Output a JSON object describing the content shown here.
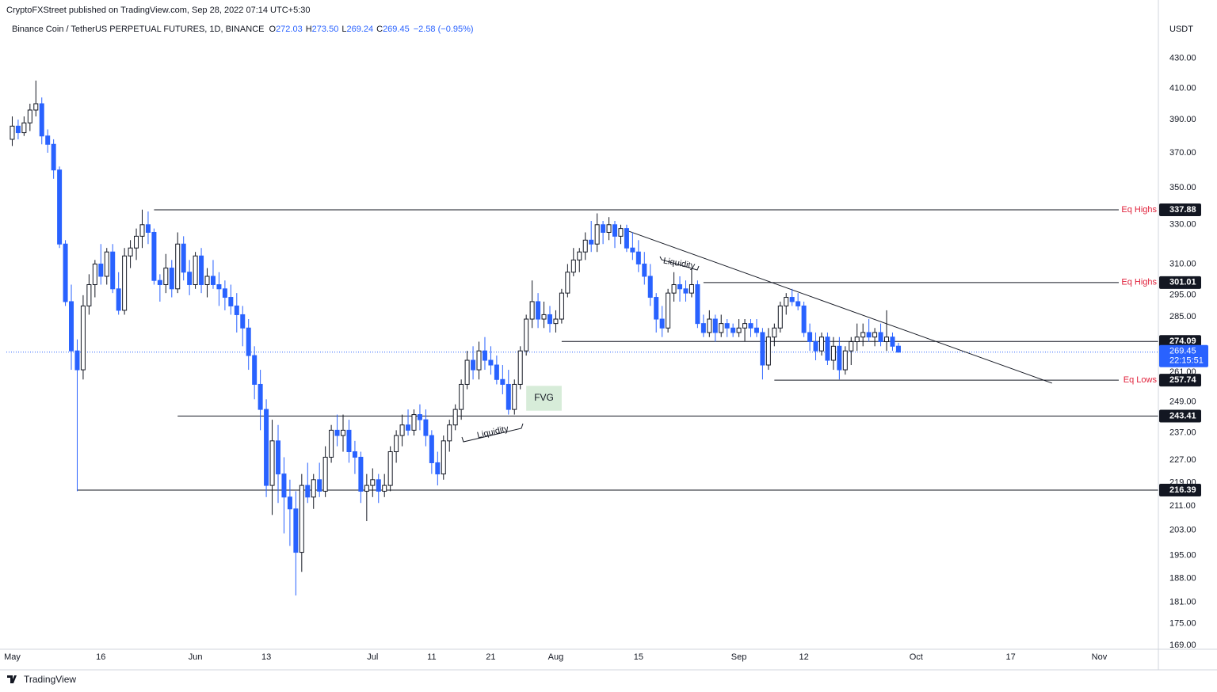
{
  "chart_data": {
    "type": "candlestick",
    "publisher": "CryptoFXStreet published on TradingView.com, Sep 28, 2022 07:14 UTC+5:30",
    "title": "Binance Coin / TetherUS PERPETUAL FUTURES, 1D, BINANCE",
    "ohlc": [
      {
        "key": "O",
        "value": "272.03"
      },
      {
        "key": "H",
        "value": "273.50"
      },
      {
        "key": "L",
        "value": "269.24"
      },
      {
        "key": "C",
        "value": "269.45"
      }
    ],
    "change": "−2.58 (−0.95%)",
    "unit": "USDT",
    "logo": "TradingView",
    "log_scale": true,
    "grid": false,
    "up_color": "#ffffff",
    "down_color": "#2962ff",
    "ylim": [
      168,
      460
    ],
    "yticks": [
      {
        "value": 430,
        "label": "430.00"
      },
      {
        "value": 410,
        "label": "410.00"
      },
      {
        "value": 390,
        "label": "390.00"
      },
      {
        "value": 370,
        "label": "370.00"
      },
      {
        "value": 350,
        "label": "350.00"
      },
      {
        "value": 330,
        "label": "330.00"
      },
      {
        "value": 310,
        "label": "310.00"
      },
      {
        "value": 295,
        "label": "295.00"
      },
      {
        "value": 285,
        "label": "285.00"
      },
      {
        "value": 261,
        "label": "261.00"
      },
      {
        "value": 249,
        "label": "249.00"
      },
      {
        "value": 237,
        "label": "237.00"
      },
      {
        "value": 227,
        "label": "227.00"
      },
      {
        "value": 219,
        "label": "219.00"
      },
      {
        "value": 211,
        "label": "211.00"
      },
      {
        "value": 203,
        "label": "203.00"
      },
      {
        "value": 195,
        "label": "195.00"
      },
      {
        "value": 188,
        "label": "188.00"
      },
      {
        "value": 181,
        "label": "181.00"
      },
      {
        "value": 175,
        "label": "175.00"
      },
      {
        "value": 169,
        "label": "169.00"
      }
    ],
    "xlim": [
      -1,
      194
    ],
    "xticks": [
      {
        "value": 0,
        "label": "May"
      },
      {
        "value": 15,
        "label": "16"
      },
      {
        "value": 31,
        "label": "Jun"
      },
      {
        "value": 43,
        "label": "13"
      },
      {
        "value": 61,
        "label": "Jul"
      },
      {
        "value": 71,
        "label": "11"
      },
      {
        "value": 81,
        "label": "21"
      },
      {
        "value": 92,
        "label": "Aug"
      },
      {
        "value": 106,
        "label": "15"
      },
      {
        "value": 123,
        "label": "Sep"
      },
      {
        "value": 134,
        "label": "12"
      },
      {
        "value": 153,
        "label": "Oct"
      },
      {
        "value": 169,
        "label": "17"
      },
      {
        "value": 184,
        "label": "Nov"
      }
    ],
    "candles": [
      [
        378,
        392,
        374,
        386
      ],
      [
        386,
        390,
        378,
        382
      ],
      [
        382,
        392,
        380,
        388
      ],
      [
        388,
        400,
        383,
        396
      ],
      [
        396,
        415,
        392,
        400
      ],
      [
        400,
        404,
        375,
        380
      ],
      [
        380,
        384,
        370,
        375
      ],
      [
        375,
        378,
        355,
        360
      ],
      [
        360,
        362,
        318,
        320
      ],
      [
        320,
        322,
        290,
        292
      ],
      [
        292,
        300,
        262,
        270
      ],
      [
        270,
        275,
        216,
        262
      ],
      [
        262,
        295,
        258,
        290
      ],
      [
        290,
        305,
        286,
        300
      ],
      [
        300,
        312,
        294,
        310
      ],
      [
        310,
        320,
        300,
        304
      ],
      [
        304,
        318,
        300,
        316
      ],
      [
        316,
        320,
        296,
        298
      ],
      [
        298,
        306,
        286,
        288
      ],
      [
        288,
        318,
        286,
        314
      ],
      [
        314,
        322,
        308,
        318
      ],
      [
        318,
        328,
        312,
        324
      ],
      [
        324,
        338,
        318,
        330
      ],
      [
        330,
        337,
        320,
        326
      ],
      [
        326,
        328,
        300,
        302
      ],
      [
        302,
        305,
        292,
        300
      ],
      [
        300,
        315,
        296,
        308
      ],
      [
        308,
        312,
        294,
        298
      ],
      [
        298,
        326,
        296,
        320
      ],
      [
        320,
        324,
        302,
        306
      ],
      [
        306,
        312,
        295,
        300
      ],
      [
        300,
        316,
        298,
        314
      ],
      [
        314,
        318,
        296,
        300
      ],
      [
        300,
        308,
        294,
        304
      ],
      [
        304,
        312,
        298,
        300
      ],
      [
        300,
        306,
        290,
        298
      ],
      [
        298,
        302,
        288,
        294
      ],
      [
        294,
        300,
        286,
        290
      ],
      [
        290,
        296,
        278,
        286
      ],
      [
        286,
        290,
        272,
        280
      ],
      [
        280,
        284,
        262,
        268
      ],
      [
        268,
        272,
        250,
        256
      ],
      [
        256,
        262,
        238,
        246
      ],
      [
        246,
        250,
        214,
        218
      ],
      [
        218,
        242,
        208,
        234
      ],
      [
        234,
        240,
        212,
        222
      ],
      [
        222,
        228,
        202,
        214
      ],
      [
        214,
        220,
        198,
        210
      ],
      [
        210,
        216,
        183,
        196
      ],
      [
        196,
        222,
        190,
        218
      ],
      [
        218,
        226,
        212,
        214
      ],
      [
        214,
        222,
        210,
        220
      ],
      [
        220,
        226,
        214,
        216
      ],
      [
        216,
        232,
        214,
        228
      ],
      [
        228,
        240,
        226,
        238
      ],
      [
        238,
        244,
        232,
        236
      ],
      [
        236,
        244,
        230,
        238
      ],
      [
        238,
        242,
        226,
        230
      ],
      [
        230,
        234,
        222,
        228
      ],
      [
        228,
        230,
        212,
        216
      ],
      [
        216,
        222,
        206,
        218
      ],
      [
        218,
        224,
        214,
        220
      ],
      [
        220,
        222,
        212,
        216
      ],
      [
        216,
        222,
        214,
        218
      ],
      [
        218,
        232,
        216,
        230
      ],
      [
        230,
        238,
        226,
        236
      ],
      [
        236,
        244,
        232,
        240
      ],
      [
        240,
        246,
        236,
        238
      ],
      [
        238,
        246,
        236,
        244
      ],
      [
        244,
        248,
        238,
        242
      ],
      [
        242,
        246,
        232,
        236
      ],
      [
        236,
        238,
        222,
        226
      ],
      [
        226,
        230,
        218,
        222
      ],
      [
        222,
        236,
        220,
        234
      ],
      [
        234,
        242,
        230,
        240
      ],
      [
        240,
        248,
        238,
        246
      ],
      [
        246,
        258,
        242,
        256
      ],
      [
        256,
        270,
        254,
        266
      ],
      [
        266,
        272,
        258,
        262
      ],
      [
        262,
        274,
        258,
        270
      ],
      [
        270,
        276,
        262,
        266
      ],
      [
        266,
        272,
        260,
        264
      ],
      [
        264,
        268,
        256,
        258
      ],
      [
        258,
        264,
        252,
        256
      ],
      [
        256,
        262,
        244,
        246
      ],
      [
        246,
        258,
        244,
        256
      ],
      [
        256,
        272,
        254,
        270
      ],
      [
        270,
        286,
        268,
        284
      ],
      [
        284,
        302,
        280,
        292
      ],
      [
        292,
        296,
        280,
        284
      ],
      [
        284,
        292,
        280,
        286
      ],
      [
        286,
        290,
        278,
        282
      ],
      [
        282,
        288,
        278,
        284
      ],
      [
        284,
        298,
        282,
        296
      ],
      [
        296,
        310,
        294,
        306
      ],
      [
        306,
        318,
        304,
        312
      ],
      [
        312,
        318,
        306,
        316
      ],
      [
        316,
        326,
        312,
        322
      ],
      [
        322,
        332,
        316,
        320
      ],
      [
        320,
        336,
        316,
        330
      ],
      [
        330,
        332,
        320,
        326
      ],
      [
        326,
        334,
        322,
        330
      ],
      [
        330,
        332,
        318,
        324
      ],
      [
        324,
        330,
        320,
        328
      ],
      [
        328,
        330,
        316,
        318
      ],
      [
        318,
        326,
        312,
        316
      ],
      [
        316,
        322,
        306,
        310
      ],
      [
        310,
        316,
        300,
        304
      ],
      [
        304,
        310,
        290,
        294
      ],
      [
        294,
        296,
        278,
        284
      ],
      [
        284,
        290,
        276,
        280
      ],
      [
        280,
        298,
        278,
        296
      ],
      [
        296,
        306,
        292,
        300
      ],
      [
        300,
        304,
        292,
        298
      ],
      [
        298,
        302,
        292,
        296
      ],
      [
        296,
        308,
        294,
        300
      ],
      [
        300,
        302,
        280,
        282
      ],
      [
        282,
        286,
        276,
        278
      ],
      [
        278,
        288,
        276,
        284
      ],
      [
        284,
        286,
        274,
        278
      ],
      [
        278,
        286,
        276,
        282
      ],
      [
        282,
        284,
        276,
        280
      ],
      [
        280,
        282,
        276,
        278
      ],
      [
        278,
        284,
        276,
        280
      ],
      [
        280,
        284,
        274,
        282
      ],
      [
        282,
        284,
        276,
        280
      ],
      [
        280,
        284,
        276,
        278
      ],
      [
        278,
        280,
        258,
        264
      ],
      [
        264,
        280,
        262,
        276
      ],
      [
        276,
        282,
        272,
        280
      ],
      [
        280,
        292,
        278,
        290
      ],
      [
        290,
        296,
        286,
        294
      ],
      [
        294,
        298,
        290,
        292
      ],
      [
        292,
        296,
        288,
        290
      ],
      [
        290,
        292,
        276,
        278
      ],
      [
        278,
        282,
        270,
        274
      ],
      [
        274,
        278,
        266,
        270
      ],
      [
        270,
        278,
        268,
        276
      ],
      [
        276,
        278,
        264,
        266
      ],
      [
        266,
        276,
        262,
        272
      ],
      [
        272,
        276,
        258,
        262
      ],
      [
        262,
        272,
        260,
        270
      ],
      [
        270,
        276,
        264,
        274
      ],
      [
        274,
        282,
        270,
        276
      ],
      [
        276,
        282,
        272,
        278
      ],
      [
        278,
        284,
        274,
        276
      ],
      [
        276,
        280,
        272,
        278
      ],
      [
        278,
        282,
        272,
        274
      ],
      [
        274,
        288,
        270,
        276
      ],
      [
        276,
        278,
        270,
        272
      ],
      [
        272.03,
        273.5,
        269.24,
        269.45
      ]
    ],
    "levels": [
      {
        "value": 337.88,
        "from": 24,
        "note": "Eq Highs"
      },
      {
        "value": 301.01,
        "from": 117,
        "note": "Eq Highs"
      },
      {
        "value": 274.09,
        "from": 93
      },
      {
        "value": 257.74,
        "from": 129,
        "note": "Eq Lows"
      },
      {
        "value": 243.41,
        "from": 28
      },
      {
        "value": 216.39,
        "from": 11
      }
    ],
    "trendline": {
      "x": [
        104,
        176
      ],
      "y": [
        327,
        256.5
      ]
    },
    "fvg": {
      "text": "FVG",
      "x": [
        87,
        93
      ],
      "y": [
        245.5,
        255.4
      ]
    },
    "liquidity_notes": [
      "Liquidity",
      "Liquidity"
    ],
    "last_price": {
      "value": 269.45,
      "countdown": "22:15:51",
      "color": "#2962ff"
    }
  }
}
